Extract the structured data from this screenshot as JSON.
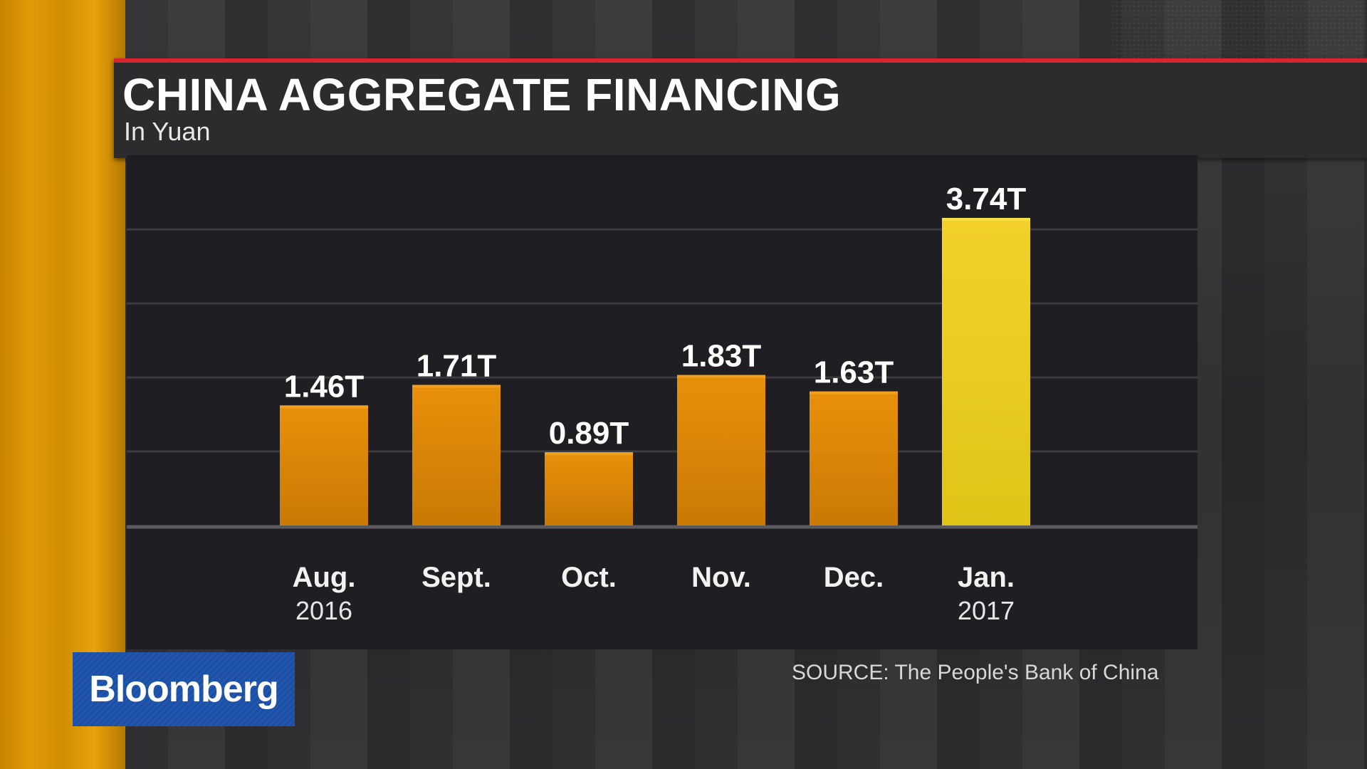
{
  "header": {
    "title": "CHINA AGGREGATE FINANCING",
    "subtitle": "In Yuan"
  },
  "footer": {
    "logo_text": "Bloomberg",
    "source": "SOURCE: The People's Bank of China"
  },
  "colors": {
    "accent_red": "#d7262e",
    "bar_orange_top": "#e8900a",
    "bar_orange_bottom": "#c97a05",
    "bar_highlight_top": "#f2d22a",
    "bar_highlight_bottom": "#e0c418",
    "logo_blue": "#1b4fa3"
  },
  "chart_data": {
    "type": "bar",
    "title": "CHINA AGGREGATE FINANCING",
    "subtitle": "In Yuan",
    "categories": [
      "Aug.",
      "Sept.",
      "Oct.",
      "Nov.",
      "Dec.",
      "Jan."
    ],
    "category_years": [
      "2016",
      "",
      "",
      "",
      "",
      "2017"
    ],
    "values": [
      1.46,
      1.71,
      0.89,
      1.83,
      1.63,
      3.74
    ],
    "value_labels": [
      "1.46T",
      "1.71T",
      "0.89T",
      "1.83T",
      "1.63T",
      "3.74T"
    ],
    "highlight_index": 5,
    "ylim": [
      0,
      4.2
    ],
    "gridlines": [
      0.9,
      1.8,
      2.7,
      3.6
    ],
    "grid": true,
    "source": "SOURCE: The People's Bank of China"
  }
}
